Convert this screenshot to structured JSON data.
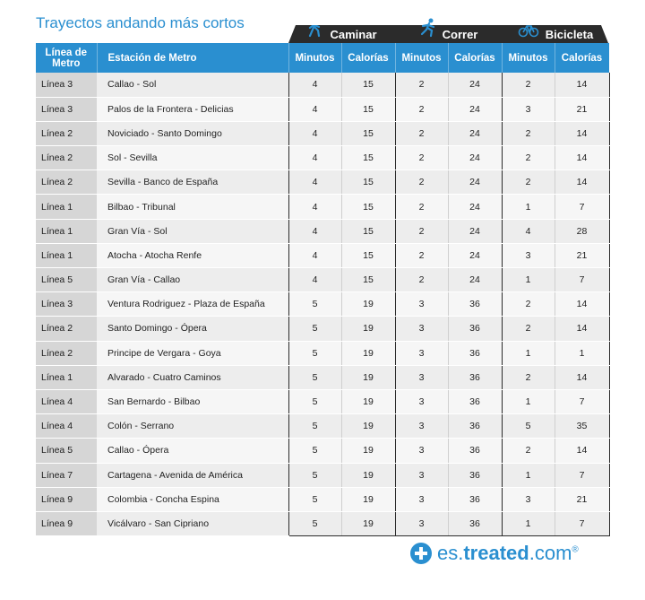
{
  "title": "Trayectos andando más cortos",
  "groups": {
    "walk": "Caminar",
    "run": "Correr",
    "bike": "Bicicleta"
  },
  "headers": {
    "line": "Línea de Metro",
    "station": "Estación de Metro",
    "minutes": "Minutos",
    "calories": "Calorías"
  },
  "rows": [
    {
      "line": "Línea 3",
      "station": "Callao - Sol",
      "wm": "4",
      "wc": "15",
      "rm": "2",
      "rc": "24",
      "bm": "2",
      "bc": "14"
    },
    {
      "line": "Línea 3",
      "station": "Palos de la Frontera - Delicias",
      "wm": "4",
      "wc": "15",
      "rm": "2",
      "rc": "24",
      "bm": "3",
      "bc": "21"
    },
    {
      "line": "Línea 2",
      "station": "Noviciado - Santo Domingo",
      "wm": "4",
      "wc": "15",
      "rm": "2",
      "rc": "24",
      "bm": "2",
      "bc": "14"
    },
    {
      "line": "Línea 2",
      "station": "Sol - Sevilla",
      "wm": "4",
      "wc": "15",
      "rm": "2",
      "rc": "24",
      "bm": "2",
      "bc": "14"
    },
    {
      "line": "Línea 2",
      "station": "Sevilla - Banco de España",
      "wm": "4",
      "wc": "15",
      "rm": "2",
      "rc": "24",
      "bm": "2",
      "bc": "14"
    },
    {
      "line": "Línea 1",
      "station": "Bilbao - Tribunal",
      "wm": "4",
      "wc": "15",
      "rm": "2",
      "rc": "24",
      "bm": "1",
      "bc": "7"
    },
    {
      "line": "Línea 1",
      "station": "Gran Vía - Sol",
      "wm": "4",
      "wc": "15",
      "rm": "2",
      "rc": "24",
      "bm": "4",
      "bc": "28"
    },
    {
      "line": "Línea 1",
      "station": "Atocha - Atocha Renfe",
      "wm": "4",
      "wc": "15",
      "rm": "2",
      "rc": "24",
      "bm": "3",
      "bc": "21"
    },
    {
      "line": "Línea 5",
      "station": "Gran Vía - Callao",
      "wm": "4",
      "wc": "15",
      "rm": "2",
      "rc": "24",
      "bm": "1",
      "bc": "7"
    },
    {
      "line": "Línea 3",
      "station": "Ventura Rodriguez - Plaza de España",
      "wm": "5",
      "wc": "19",
      "rm": "3",
      "rc": "36",
      "bm": "2",
      "bc": "14"
    },
    {
      "line": "Línea 2",
      "station": "Santo Domingo - Ópera",
      "wm": "5",
      "wc": "19",
      "rm": "3",
      "rc": "36",
      "bm": "2",
      "bc": "14"
    },
    {
      "line": "Línea 2",
      "station": "Principe de Vergara - Goya",
      "wm": "5",
      "wc": "19",
      "rm": "3",
      "rc": "36",
      "bm": "1",
      "bc": "1"
    },
    {
      "line": "Línea 1",
      "station": "Alvarado - Cuatro Caminos",
      "wm": "5",
      "wc": "19",
      "rm": "3",
      "rc": "36",
      "bm": "2",
      "bc": "14"
    },
    {
      "line": "Línea 4",
      "station": "San Bernardo - Bilbao",
      "wm": "5",
      "wc": "19",
      "rm": "3",
      "rc": "36",
      "bm": "1",
      "bc": "7"
    },
    {
      "line": "Línea 4",
      "station": "Colón - Serrano",
      "wm": "5",
      "wc": "19",
      "rm": "3",
      "rc": "36",
      "bm": "5",
      "bc": "35"
    },
    {
      "line": "Línea 5",
      "station": "Callao - Ópera",
      "wm": "5",
      "wc": "19",
      "rm": "3",
      "rc": "36",
      "bm": "2",
      "bc": "14"
    },
    {
      "line": "Línea 7",
      "station": "Cartagena - Avenida de América",
      "wm": "5",
      "wc": "19",
      "rm": "3",
      "rc": "36",
      "bm": "1",
      "bc": "7"
    },
    {
      "line": "Línea 9",
      "station": "Colombia - Concha Espina",
      "wm": "5",
      "wc": "19",
      "rm": "3",
      "rc": "36",
      "bm": "3",
      "bc": "21"
    },
    {
      "line": "Línea 9",
      "station": "Vicálvaro - San Cipriano",
      "wm": "5",
      "wc": "19",
      "rm": "3",
      "rc": "36",
      "bm": "1",
      "bc": "7"
    }
  ],
  "logo": {
    "prefix": "es.",
    "brand": "treated",
    "suffix": ".com",
    "mark": "®"
  },
  "colors": {
    "accent": "#2a8fd0",
    "dark": "#2b2b2b"
  }
}
